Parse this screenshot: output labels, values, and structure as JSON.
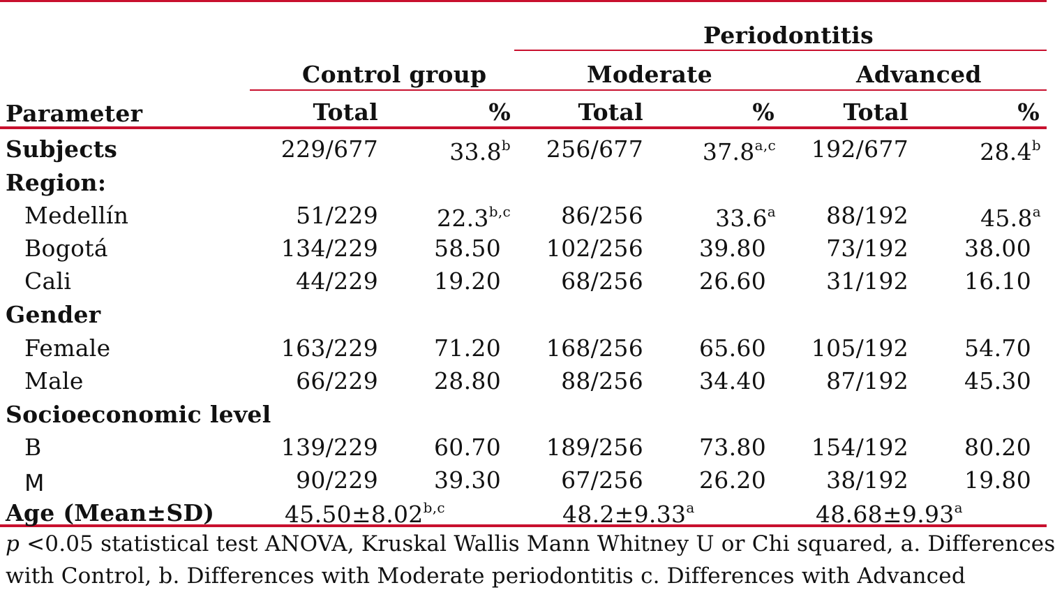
{
  "header": {
    "periodontitis": "Periodontitis",
    "control_group": "Control group",
    "moderate": "Moderate",
    "advanced": "Advanced",
    "parameter": "Parameter",
    "total": "Total",
    "percent": "%"
  },
  "rows": {
    "subjects": {
      "label": "Subjects",
      "c_total": "229/677",
      "c_pct": "33.8",
      "c_sup": "b",
      "m_total": "256/677",
      "m_pct": "37.8",
      "m_sup": "a,c",
      "a_total": "192/677",
      "a_pct": "28.4",
      "a_sup": "b"
    },
    "region": {
      "label": "Region:"
    },
    "medellin": {
      "label": "Medellín",
      "c_total": "51/229",
      "c_pct": "22.3",
      "c_sup": "b,c",
      "m_total": "86/256",
      "m_pct": "33.6",
      "m_sup": "a",
      "a_total": "88/192",
      "a_pct": "45.8",
      "a_sup": "a"
    },
    "bogota": {
      "label": "Bogotá",
      "c_total": "134/229",
      "c_pct": "58.50",
      "m_total": "102/256",
      "m_pct": "39.80",
      "a_total": "73/192",
      "a_pct": "38.00"
    },
    "cali": {
      "label": "Cali",
      "c_total": "44/229",
      "c_pct": "19.20",
      "m_total": "68/256",
      "m_pct": "26.60",
      "a_total": "31/192",
      "a_pct": "16.10"
    },
    "gender": {
      "label": "Gender"
    },
    "female": {
      "label": "Female",
      "c_total": "163/229",
      "c_pct": "71.20",
      "m_total": "168/256",
      "m_pct": "65.60",
      "a_total": "105/192",
      "a_pct": "54.70"
    },
    "male": {
      "label": "Male",
      "c_total": "66/229",
      "c_pct": "28.80",
      "m_total": "88/256",
      "m_pct": "34.40",
      "a_total": "87/192",
      "a_pct": "45.30"
    },
    "socio": {
      "label": "Socioeconomic level"
    },
    "b": {
      "label": "B",
      "c_total": "139/229",
      "c_pct": "60.70",
      "m_total": "189/256",
      "m_pct": "73.80",
      "a_total": "154/192",
      "a_pct": "80.20"
    },
    "m": {
      "label": "M",
      "c_total": "90/229",
      "c_pct": "39.30",
      "m_total": "67/256",
      "m_pct": "26.20",
      "a_total": "38/192",
      "a_pct": "19.80"
    },
    "age": {
      "label": "Age (Mean±SD)",
      "c_val": "45.50±8.02",
      "c_sup": "b,c",
      "m_val": "48.2±9.33",
      "m_sup": "a",
      "a_val": "48.68±9.93",
      "a_sup": "a"
    }
  },
  "footnote": {
    "p": "p",
    "line1": " <0.05 statistical test ANOVA, Kruskal Wallis Mann Whitney U or Chi squared,  a. Differences",
    "line2": "with Control, b. Differences with Moderate periodontitis c. Differences with Advanced"
  },
  "colors": {
    "rule": "#c8102e"
  }
}
